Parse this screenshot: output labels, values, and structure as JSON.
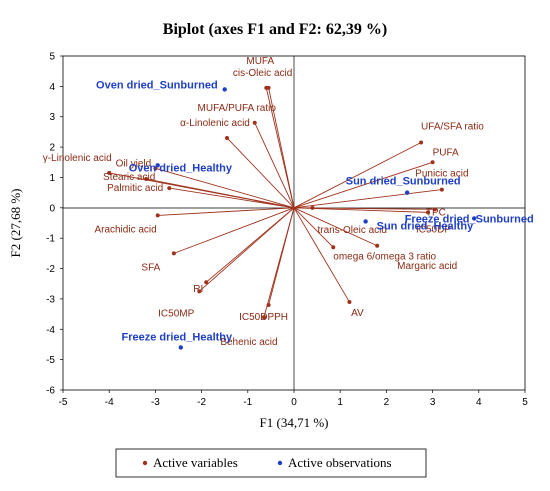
{
  "colors": {
    "variables": "#a0321c",
    "variable_text": "#8b2a14",
    "observations": "#1f3fc4",
    "observation_text": "#1f3fc4"
  },
  "chart_data": {
    "type": "scatter",
    "title": "Biplot (axes F1 and F2: 62,39 %)",
    "xlabel": "F1 (34,71 %)",
    "ylabel": "F2 (27,68 %)",
    "xlim": [
      -5,
      5
    ],
    "ylim": [
      -6,
      5
    ],
    "xticks": [
      "-5",
      "-4",
      "-3",
      "-2",
      "-1",
      "0",
      "1",
      "2",
      "3",
      "4",
      "5"
    ],
    "yticks": [
      "-6",
      "-5",
      "-4",
      "-3",
      "-2",
      "-1",
      "0",
      "1",
      "2",
      "3",
      "4",
      "5"
    ],
    "grid": false,
    "legend": {
      "position": "bottom",
      "entries": [
        "Active variables",
        "Active observations"
      ]
    },
    "variables": [
      {
        "name": "MUFA",
        "x": -0.6,
        "y": 3.95
      },
      {
        "name": "cis-Oleic acid",
        "x": -0.55,
        "y": 3.95
      },
      {
        "name": "MUFA/PUFA ratio",
        "x": -0.85,
        "y": 2.8
      },
      {
        "name": "α-Linolenic acid",
        "x": -1.45,
        "y": 2.3
      },
      {
        "name": "γ-Linolenic acid",
        "x": -4.0,
        "y": 1.15
      },
      {
        "name": "Oil yield",
        "x": -3.0,
        "y": 1.3
      },
      {
        "name": "Stearic acid",
        "x": -3.2,
        "y": 0.95
      },
      {
        "name": "Palmitic acid",
        "x": -2.7,
        "y": 0.65
      },
      {
        "name": "Arachidic acid",
        "x": -2.95,
        "y": -0.25
      },
      {
        "name": "SFA",
        "x": -2.6,
        "y": -1.5
      },
      {
        "name": "RI",
        "x": -1.9,
        "y": -2.45
      },
      {
        "name": "IC50MP",
        "x": -2.05,
        "y": -2.75
      },
      {
        "name": "IC50DPPH",
        "x": -0.55,
        "y": -3.2
      },
      {
        "name": "Behenic acid",
        "x": -0.65,
        "y": -3.6
      },
      {
        "name": "AV",
        "x": 1.2,
        "y": -3.1
      },
      {
        "name": "trans-Oleic acid",
        "x": 0.4,
        "y": 0.0
      },
      {
        "name": "omega 6/omega 3 ratio",
        "x": 0.85,
        "y": -1.3
      },
      {
        "name": "Margaric acid",
        "x": 1.8,
        "y": -1.25
      },
      {
        "name": "IC50DP",
        "x": 2.9,
        "y": -0.15
      },
      {
        "name": "TPC",
        "x": 3.05,
        "y": -0.05
      },
      {
        "name": "Punicic acid",
        "x": 3.2,
        "y": 0.6
      },
      {
        "name": "PUFA",
        "x": 3.0,
        "y": 1.5
      },
      {
        "name": "UFA/SFA ratio",
        "x": 2.75,
        "y": 2.15
      }
    ],
    "observations": [
      {
        "name": "Oven dried_Sunburned",
        "x": -1.5,
        "y": 3.9
      },
      {
        "name": "Oven dried_Healthy",
        "x": -2.95,
        "y": 1.4
      },
      {
        "name": "Sun dried_Sunburned",
        "x": 2.45,
        "y": 0.5
      },
      {
        "name": "Freeze dried_Sunburned",
        "x": 3.9,
        "y": -0.35
      },
      {
        "name": "Sun dried_Healthy",
        "x": 1.55,
        "y": -0.45
      },
      {
        "name": "Freeze dried_Healthy",
        "x": -2.45,
        "y": -4.6
      }
    ]
  }
}
